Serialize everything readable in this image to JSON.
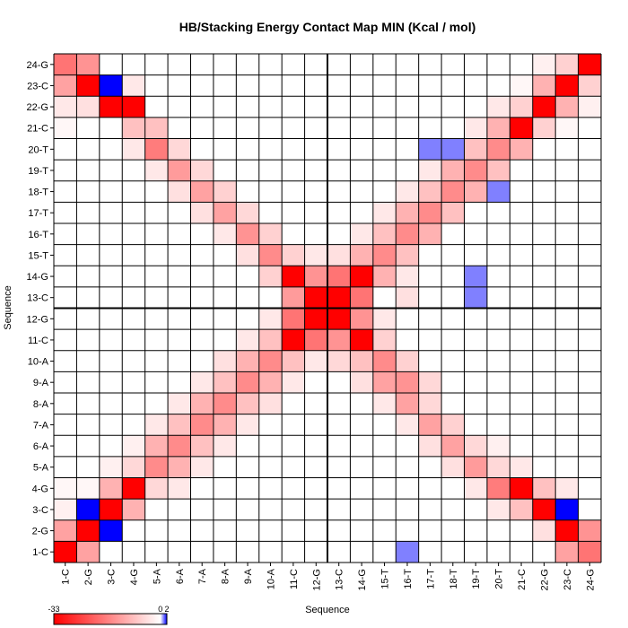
{
  "chart_data": {
    "type": "heatmap",
    "title": "HB/Stacking Energy Contact Map MIN (Kcal / mol)",
    "xlabel": "Sequence",
    "ylabel": "Sequence",
    "labels": [
      "1-C",
      "2-G",
      "3-C",
      "4-G",
      "5-A",
      "6-A",
      "7-A",
      "8-A",
      "9-A",
      "10-A",
      "11-C",
      "12-G",
      "13-C",
      "14-G",
      "15-T",
      "16-T",
      "17-T",
      "18-T",
      "19-T",
      "20-T",
      "21-C",
      "22-G",
      "23-C",
      "24-G"
    ],
    "colorbar": {
      "min": -33,
      "mid": 0,
      "max": 2,
      "tick_labels": [
        "-33",
        "0",
        "2"
      ]
    },
    "divider_after": 12,
    "cells": [
      [
        1,
        1,
        -33
      ],
      [
        1,
        2,
        -12
      ],
      [
        1,
        3,
        -2
      ],
      [
        1,
        4,
        -1
      ],
      [
        1,
        21,
        -1
      ],
      [
        1,
        22,
        -3
      ],
      [
        1,
        23,
        -12
      ],
      [
        1,
        24,
        -18
      ],
      [
        2,
        1,
        -12
      ],
      [
        2,
        2,
        -33
      ],
      [
        2,
        3,
        2
      ],
      [
        2,
        4,
        -1
      ],
      [
        2,
        22,
        -4
      ],
      [
        2,
        23,
        -33
      ],
      [
        2,
        24,
        -14
      ],
      [
        3,
        2,
        2
      ],
      [
        3,
        3,
        -33
      ],
      [
        3,
        4,
        -10
      ],
      [
        3,
        5,
        -2
      ],
      [
        3,
        22,
        -33
      ],
      [
        3,
        23,
        2
      ],
      [
        4,
        3,
        -10
      ],
      [
        4,
        4,
        -33
      ],
      [
        4,
        5,
        -5
      ],
      [
        4,
        6,
        -2
      ],
      [
        4,
        20,
        -3
      ],
      [
        4,
        21,
        -8
      ],
      [
        4,
        22,
        -33
      ],
      [
        4,
        23,
        -3
      ],
      [
        5,
        4,
        -5
      ],
      [
        5,
        5,
        -15
      ],
      [
        5,
        6,
        -10
      ],
      [
        5,
        7,
        -3
      ],
      [
        5,
        19,
        -3
      ],
      [
        5,
        20,
        -17
      ],
      [
        5,
        21,
        -8
      ],
      [
        6,
        4,
        -3
      ],
      [
        6,
        5,
        -10
      ],
      [
        6,
        6,
        -15
      ],
      [
        6,
        7,
        -8
      ],
      [
        6,
        8,
        -3
      ],
      [
        6,
        18,
        -4
      ],
      [
        6,
        19,
        -13
      ],
      [
        6,
        20,
        -5
      ],
      [
        7,
        5,
        -3
      ],
      [
        7,
        6,
        -8
      ],
      [
        7,
        7,
        -15
      ],
      [
        7,
        8,
        -10
      ],
      [
        7,
        9,
        -3
      ],
      [
        7,
        17,
        -4
      ],
      [
        7,
        18,
        -12
      ],
      [
        7,
        19,
        -5
      ],
      [
        8,
        6,
        -3
      ],
      [
        8,
        7,
        -10
      ],
      [
        8,
        8,
        -15
      ],
      [
        8,
        9,
        -8
      ],
      [
        8,
        10,
        -4
      ],
      [
        8,
        16,
        -3
      ],
      [
        8,
        17,
        -12
      ],
      [
        8,
        18,
        -6
      ],
      [
        9,
        7,
        -3
      ],
      [
        9,
        8,
        -8
      ],
      [
        9,
        9,
        -15
      ],
      [
        9,
        10,
        -10
      ],
      [
        9,
        11,
        -3
      ],
      [
        9,
        15,
        -4
      ],
      [
        9,
        16,
        -14
      ],
      [
        9,
        17,
        -5
      ],
      [
        10,
        8,
        -4
      ],
      [
        10,
        9,
        -10
      ],
      [
        10,
        10,
        -15
      ],
      [
        10,
        11,
        -8
      ],
      [
        10,
        12,
        -3
      ],
      [
        10,
        14,
        -6
      ],
      [
        10,
        15,
        -15
      ],
      [
        10,
        16,
        -6
      ],
      [
        11,
        9,
        -3
      ],
      [
        11,
        10,
        -8
      ],
      [
        11,
        11,
        -33
      ],
      [
        11,
        12,
        -18
      ],
      [
        11,
        13,
        -13
      ],
      [
        11,
        14,
        -33
      ],
      [
        11,
        15,
        -6
      ],
      [
        12,
        10,
        -3
      ],
      [
        12,
        11,
        -18
      ],
      [
        12,
        12,
        -33
      ],
      [
        12,
        13,
        -33
      ],
      [
        12,
        14,
        -14
      ],
      [
        12,
        15,
        -3
      ],
      [
        13,
        10,
        -5
      ],
      [
        13,
        11,
        -14
      ],
      [
        13,
        12,
        -33
      ],
      [
        13,
        13,
        -33
      ],
      [
        13,
        14,
        -18
      ],
      [
        13,
        15,
        -4
      ],
      [
        14,
        9,
        -4
      ],
      [
        14,
        10,
        -8
      ],
      [
        14,
        11,
        -33
      ],
      [
        14,
        12,
        -14
      ],
      [
        14,
        13,
        -18
      ],
      [
        14,
        14,
        -33
      ],
      [
        14,
        15,
        -10
      ],
      [
        14,
        16,
        -3
      ],
      [
        15,
        8,
        -3
      ],
      [
        15,
        9,
        -12
      ],
      [
        15,
        10,
        -15
      ],
      [
        15,
        11,
        -6
      ],
      [
        15,
        12,
        -3
      ],
      [
        15,
        14,
        -10
      ],
      [
        15,
        15,
        -15
      ],
      [
        15,
        16,
        -8
      ],
      [
        15,
        17,
        -3
      ],
      [
        16,
        7,
        -3
      ],
      [
        16,
        8,
        -12
      ],
      [
        16,
        9,
        -14
      ],
      [
        16,
        10,
        -6
      ],
      [
        16,
        13,
        -4
      ],
      [
        16,
        14,
        -3
      ],
      [
        16,
        15,
        -8
      ],
      [
        16,
        16,
        -15
      ],
      [
        16,
        17,
        -10
      ],
      [
        16,
        18,
        -3
      ],
      [
        17,
        6,
        -4
      ],
      [
        17,
        7,
        -12
      ],
      [
        17,
        8,
        -5
      ],
      [
        17,
        9,
        -5
      ],
      [
        17,
        16,
        -10
      ],
      [
        17,
        17,
        -15
      ],
      [
        17,
        18,
        -8
      ],
      [
        17,
        19,
        -3
      ],
      [
        18,
        5,
        -4
      ],
      [
        18,
        6,
        -12
      ],
      [
        18,
        7,
        -6
      ],
      [
        18,
        17,
        -8
      ],
      [
        18,
        18,
        -15
      ],
      [
        18,
        19,
        -10
      ],
      [
        18,
        20,
        -3
      ],
      [
        19,
        4,
        -3
      ],
      [
        19,
        5,
        -13
      ],
      [
        19,
        6,
        -5
      ],
      [
        19,
        18,
        -10
      ],
      [
        19,
        19,
        -15
      ],
      [
        19,
        20,
        -8
      ],
      [
        19,
        21,
        -3
      ],
      [
        20,
        3,
        -3
      ],
      [
        20,
        4,
        -17
      ],
      [
        20,
        5,
        -5
      ],
      [
        20,
        6,
        -2
      ],
      [
        20,
        19,
        -8
      ],
      [
        20,
        20,
        -15
      ],
      [
        20,
        21,
        -10
      ],
      [
        20,
        22,
        -3
      ],
      [
        21,
        3,
        -8
      ],
      [
        21,
        4,
        -33
      ],
      [
        21,
        5,
        -3
      ],
      [
        21,
        20,
        -10
      ],
      [
        21,
        21,
        -33
      ],
      [
        21,
        22,
        -6
      ],
      [
        21,
        23,
        -1
      ],
      [
        22,
        2,
        -4
      ],
      [
        22,
        3,
        -33
      ],
      [
        22,
        4,
        -8
      ],
      [
        22,
        21,
        -6
      ],
      [
        22,
        22,
        -33
      ],
      [
        22,
        23,
        -10
      ],
      [
        22,
        24,
        -2
      ],
      [
        23,
        1,
        -12
      ],
      [
        23,
        2,
        -33
      ],
      [
        23,
        3,
        2
      ],
      [
        23,
        4,
        -3
      ],
      [
        23,
        21,
        -1
      ],
      [
        23,
        22,
        -10
      ],
      [
        23,
        23,
        -33
      ],
      [
        23,
        24,
        -6
      ],
      [
        24,
        1,
        -18
      ],
      [
        24,
        2,
        -14
      ],
      [
        24,
        22,
        -2
      ],
      [
        24,
        23,
        -6
      ],
      [
        24,
        24,
        -33
      ],
      [
        16,
        1,
        1
      ],
      [
        17,
        20,
        1
      ],
      [
        19,
        14,
        1
      ],
      [
        19,
        13,
        1
      ],
      [
        18,
        20,
        1
      ],
      [
        20,
        18,
        1
      ]
    ]
  }
}
